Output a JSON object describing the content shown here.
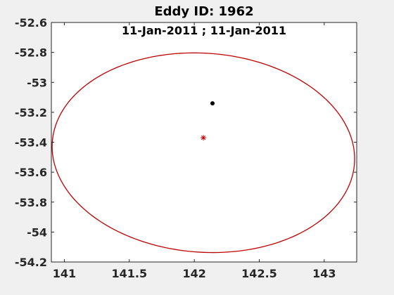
{
  "chart_data": {
    "type": "scatter",
    "title": "Eddy ID: 1962",
    "subtitle": "11-Jan-2011 ; 11-Jan-2011",
    "xlabel": "",
    "ylabel": "",
    "xlim": [
      140.9,
      143.25
    ],
    "ylim": [
      -54.2,
      -52.6
    ],
    "xticks": [
      141,
      141.5,
      142,
      142.5,
      143
    ],
    "xtick_labels": [
      "141",
      "141.5",
      "142",
      "142.5",
      "143"
    ],
    "yticks": [
      -52.6,
      -52.8,
      -53,
      -53.2,
      -53.4,
      -53.6,
      -53.8,
      -54,
      -54.2
    ],
    "ytick_labels": [
      "-52.6",
      "-52.8",
      "-53",
      "-53.2",
      "-53.4",
      "-53.6",
      "-53.8",
      "-54",
      "-54.2"
    ],
    "grid": false,
    "ellipse": {
      "center": [
        142.07,
        -53.47
      ],
      "semi_axis_x": 1.165,
      "semi_axis_y": 0.665,
      "rotation_deg": -3,
      "color": "#c00000"
    },
    "points": [
      {
        "x": 142.14,
        "y": -53.14,
        "marker": "dot",
        "color": "#000000"
      },
      {
        "x": 142.07,
        "y": -53.37,
        "marker": "asterisk",
        "color": "#c00000"
      }
    ]
  }
}
